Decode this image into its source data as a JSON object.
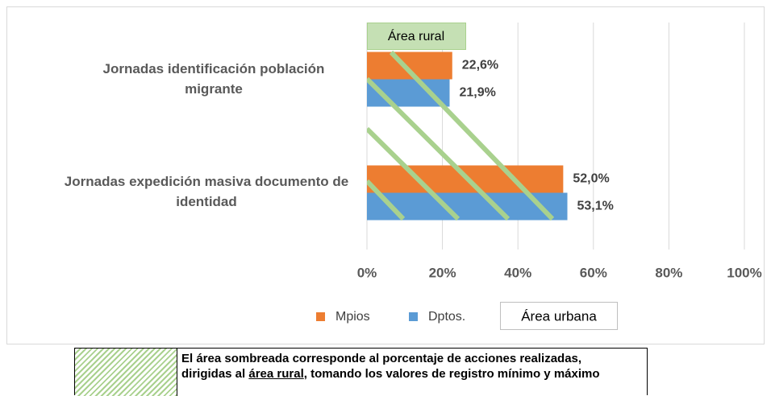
{
  "chart_data": {
    "type": "bar",
    "orientation": "horizontal",
    "categories": [
      "Jornadas identificación población migrante",
      "Jornadas expedición masiva documento de identidad"
    ],
    "series": [
      {
        "name": "Mpios",
        "color": "#ed7d31",
        "values": [
          22.6,
          52.0
        ],
        "value_labels": [
          "22,6%",
          "52,0%"
        ]
      },
      {
        "name": "Dptos.",
        "color": "#5b9bd5",
        "values": [
          21.9,
          53.1
        ],
        "value_labels": [
          "21,9%",
          "53,1%"
        ]
      }
    ],
    "xlim": [
      0,
      100
    ],
    "xticks": [
      {
        "value": 0,
        "label": "0%"
      },
      {
        "value": 20,
        "label": "20%"
      },
      {
        "value": 40,
        "label": "40%"
      },
      {
        "value": 60,
        "label": "60%"
      },
      {
        "value": 80,
        "label": "80%"
      },
      {
        "value": 100,
        "label": "100%"
      }
    ],
    "grid": true,
    "annotations": [
      "Área rural",
      "Área urbana"
    ]
  },
  "note": [
    "El área sombreada corresponde al porcentaje de acciones realizadas,",
    "dirigidas al ",
    "área rural",
    ", tomando los valores de registro mínimo y máximo"
  ]
}
